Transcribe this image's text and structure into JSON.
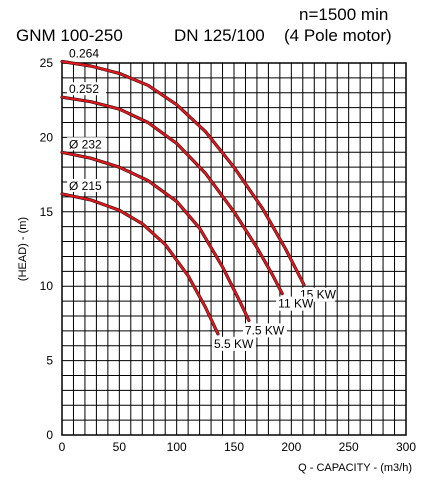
{
  "header": {
    "model": "GNM 100-250",
    "dn": "DN 125/100",
    "speed": "n=1500 min",
    "motor": "(4 Pole motor)"
  },
  "chart_data": {
    "type": "line",
    "xlabel": "Q - CAPACITY - (m3/h)",
    "ylabel": "(HEAD) - (m)",
    "xlim": [
      0,
      300
    ],
    "ylim": [
      0,
      25
    ],
    "xticks": [
      0,
      50,
      100,
      150,
      200,
      250,
      300
    ],
    "yticks": [
      0,
      5,
      10,
      15,
      20,
      25
    ],
    "grid": true,
    "line_color": "#e0161b",
    "series": [
      {
        "name": "0.264",
        "power": "15 KW",
        "points": [
          [
            0,
            25.1
          ],
          [
            25,
            24.8
          ],
          [
            50,
            24.3
          ],
          [
            75,
            23.5
          ],
          [
            100,
            22.2
          ],
          [
            125,
            20.4
          ],
          [
            150,
            18.0
          ],
          [
            175,
            15.2
          ],
          [
            195,
            12.5
          ],
          [
            211,
            10.1
          ]
        ]
      },
      {
        "name": "0.252",
        "power": "11 KW",
        "points": [
          [
            0,
            22.7
          ],
          [
            25,
            22.4
          ],
          [
            50,
            21.9
          ],
          [
            75,
            21.0
          ],
          [
            100,
            19.6
          ],
          [
            125,
            17.6
          ],
          [
            150,
            15.0
          ],
          [
            170,
            12.6
          ],
          [
            184,
            10.7
          ],
          [
            192,
            9.5
          ]
        ]
      },
      {
        "name": "Ø 232",
        "power": "7.5 KW",
        "points": [
          [
            0,
            19.0
          ],
          [
            25,
            18.6
          ],
          [
            50,
            18.0
          ],
          [
            75,
            17.1
          ],
          [
            100,
            15.7
          ],
          [
            120,
            13.9
          ],
          [
            140,
            11.3
          ],
          [
            155,
            9.0
          ],
          [
            163,
            7.7
          ]
        ]
      },
      {
        "name": "Ø 215",
        "power": "5.5 KW",
        "points": [
          [
            0,
            16.2
          ],
          [
            25,
            15.8
          ],
          [
            50,
            15.1
          ],
          [
            70,
            14.2
          ],
          [
            90,
            12.8
          ],
          [
            110,
            10.7
          ],
          [
            125,
            8.6
          ],
          [
            136,
            6.8
          ]
        ]
      }
    ]
  }
}
